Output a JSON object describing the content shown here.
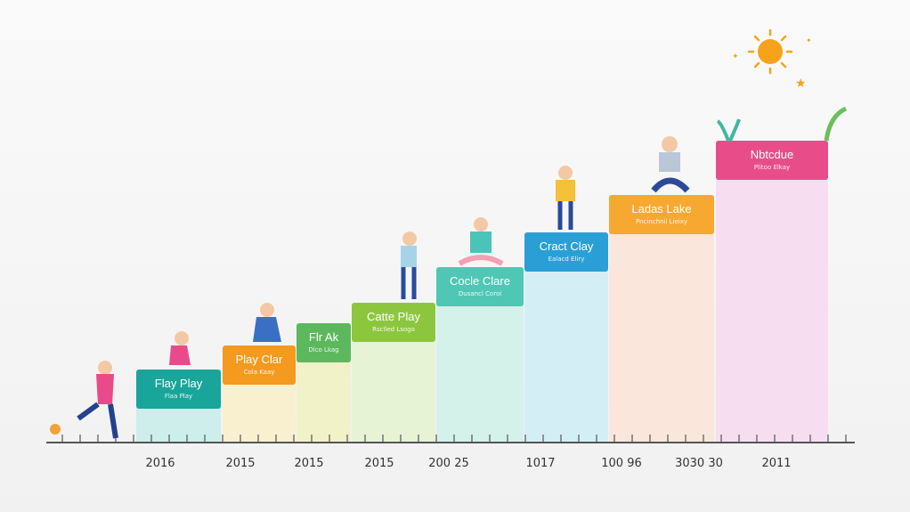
{
  "steps": [
    {
      "label": "Flay Play",
      "sublabel": "Flaa Play"
    },
    {
      "label": "Play Clar",
      "sublabel": "Cola Kaay"
    },
    {
      "label": "Flr Ak",
      "sublabel": "Dlco Lkag"
    },
    {
      "label": "Catte Play",
      "sublabel": "Rsclled Lsogo"
    },
    {
      "label": "Cocle Clare",
      "sublabel": "Dusancl Coroi"
    },
    {
      "label": "Cract Clay",
      "sublabel": "Ealacd Eliry"
    },
    {
      "label": "Ladas Lake",
      "sublabel": "Pncinchnil Lieixy"
    },
    {
      "label": "Nbtcdue",
      "sublabel": "Plitoo Elkay"
    }
  ],
  "years": [
    "2016",
    "2015",
    "2015",
    "2015",
    "200 25",
    "1017",
    "100 96",
    "3030 30",
    "2011"
  ]
}
